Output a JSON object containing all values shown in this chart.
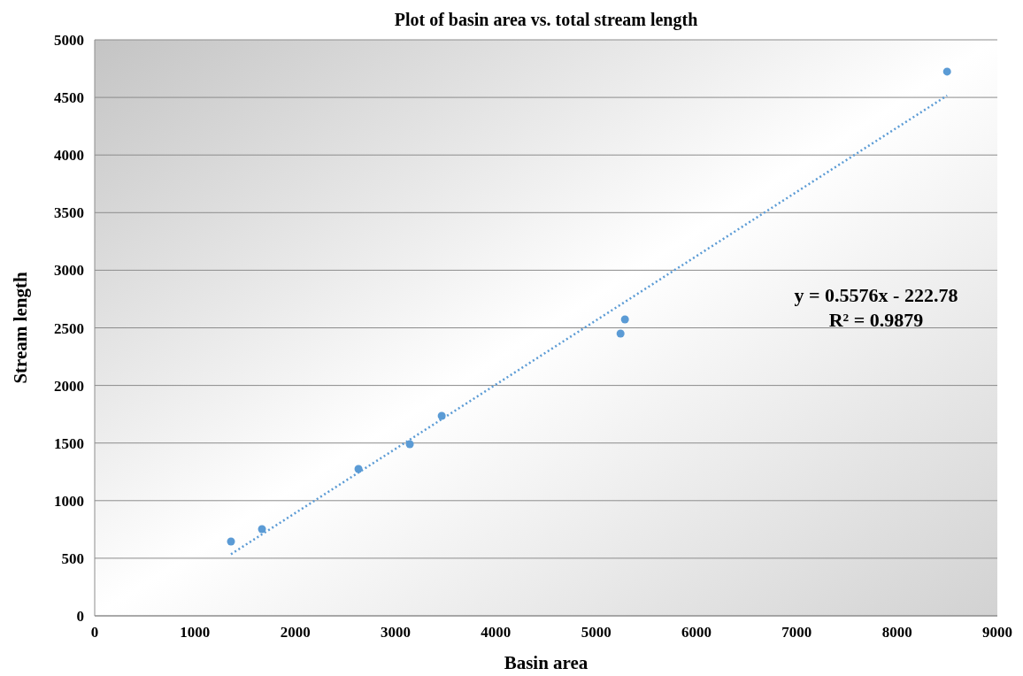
{
  "chart_data": {
    "type": "scatter",
    "title": "Plot of basin area vs. total stream length",
    "xlabel": "Basin area",
    "ylabel": "Stream length",
    "xlim": [
      0,
      9000
    ],
    "xticks": [
      0,
      1000,
      2000,
      3000,
      4000,
      5000,
      6000,
      7000,
      8000,
      9000
    ],
    "ylim": [
      0,
      5000
    ],
    "yticks": [
      0,
      500,
      1000,
      1500,
      2000,
      2500,
      3000,
      3500,
      4000,
      4500,
      5000
    ],
    "grid": "y",
    "marker": "circle",
    "series": [
      {
        "color": "#5b9bd5",
        "x": [
          1359,
          1668,
          2630,
          3142,
          3460,
          5243,
          5287,
          8499
        ],
        "values": [
          645,
          753,
          1275,
          1490,
          1736,
          2450,
          2573,
          4724
        ]
      },
      {
        "type": "line",
        "color": "#5b9bd5",
        "line_style": "dotted",
        "marker": "none",
        "x": [
          1359,
          8499
        ],
        "values": [
          535,
          4516
        ]
      }
    ],
    "annotations": [
      "y = 0.5576x - 222.78",
      "R² = 0.9879"
    ]
  }
}
